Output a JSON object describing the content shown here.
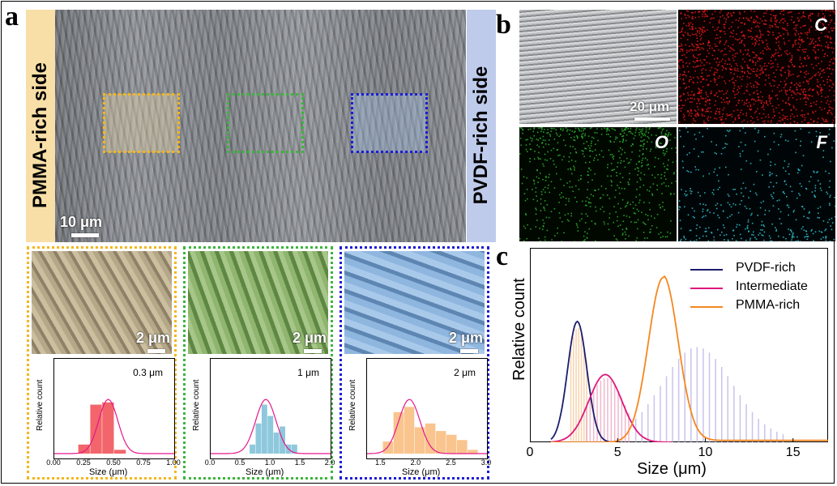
{
  "panels": {
    "a": "a",
    "b": "b",
    "c": "c"
  },
  "panel_a": {
    "left_side_label": "PMMA-rich side",
    "right_side_label": "PVDF-rich side",
    "main_scale": "10 μm",
    "colors": {
      "pmma_band": "#f8dfa7",
      "pvdf_band": "#bfcbeb",
      "orange_box": "#f5b61c",
      "green_box": "#3cb53c",
      "blue_box": "#1c1cd6"
    },
    "insets": [
      {
        "scale": "2 μm",
        "annotation": "0.3 μm",
        "ylabel": "Relative count",
        "xlabel": "Size (μm)",
        "ticks": [
          "0.00",
          "0.25",
          "0.50",
          "0.75",
          "1.00"
        ],
        "bar_color": "#f2666b",
        "curve_color": "#e5178a"
      },
      {
        "scale": "2 μm",
        "annotation": "1 μm",
        "ylabel": "Relative count",
        "xlabel": "Size (μm)",
        "ticks": [
          "0.0",
          "0.5",
          "1.0",
          "1.5",
          "2.0"
        ],
        "bar_color": "#8ec8dc",
        "curve_color": "#e5178a"
      },
      {
        "scale": "2 μm",
        "annotation": "2 μm",
        "ylabel": "Relative count",
        "xlabel": "Size (μm)",
        "ticks": [
          "1.5",
          "2.0",
          "2.5",
          "3.0"
        ],
        "bar_color": "#f9c48e",
        "curve_color": "#e5178a"
      }
    ]
  },
  "panel_b": {
    "scale": "20 μm",
    "maps": [
      {
        "label": "",
        "color": "#ffffff"
      },
      {
        "label": "C",
        "color": "#e01b1b"
      },
      {
        "label": "O",
        "color": "#2fb52f"
      },
      {
        "label": "F",
        "color": "#2ec4d0"
      }
    ]
  },
  "chart_data": [
    {
      "type": "bar",
      "title": "",
      "annotation": "0.3 μm",
      "xlabel": "Size (μm)",
      "ylabel": "Relative count",
      "xlim": [
        0.0,
        1.0
      ],
      "xticks": [
        "0.00",
        "0.25",
        "0.50",
        "0.75",
        "1.00"
      ],
      "bins": [
        0.25,
        0.35,
        0.45,
        0.55
      ],
      "values": [
        0.12,
        0.65,
        0.68,
        0.05
      ],
      "fit_center": 0.45,
      "fit_sigma": 0.08
    },
    {
      "type": "bar",
      "title": "",
      "annotation": "1 μm",
      "xlabel": "Size (μm)",
      "ylabel": "Relative count",
      "xlim": [
        0.0,
        2.0
      ],
      "xticks": [
        "0.0",
        "0.5",
        "1.0",
        "1.5",
        "2.0"
      ],
      "bins": [
        0.7,
        0.8,
        0.9,
        1.0,
        1.1,
        1.2,
        1.3,
        1.4
      ],
      "values": [
        0.12,
        0.4,
        0.65,
        0.5,
        0.28,
        0.36,
        0.12,
        0.12
      ],
      "fit_center": 0.92,
      "fit_sigma": 0.17
    },
    {
      "type": "bar",
      "title": "",
      "annotation": "2 μm",
      "xlabel": "Size (μm)",
      "ylabel": "Relative count",
      "xlim": [
        1.3,
        3.0
      ],
      "xticks": [
        "1.5",
        "2.0",
        "2.5",
        "3.0"
      ],
      "bins": [
        1.6,
        1.75,
        1.9,
        2.05,
        2.2,
        2.35,
        2.5,
        2.65,
        2.8
      ],
      "values": [
        0.16,
        0.55,
        0.62,
        0.35,
        0.4,
        0.3,
        0.25,
        0.18,
        0.05
      ],
      "fit_center": 1.9,
      "fit_sigma": 0.15
    },
    {
      "type": "line",
      "title": "",
      "xlabel": "Size (μm)",
      "ylabel": "Relative count",
      "xlim": [
        0,
        17
      ],
      "xticks": [
        "0",
        "5",
        "10",
        "15"
      ],
      "series": [
        {
          "name": "PVDF-rich",
          "color": "#1c1c6e",
          "center": 2.7,
          "sigma": 0.55,
          "peak": 0.66
        },
        {
          "name": "Intermediate",
          "color": "#e0187c",
          "center": 4.3,
          "sigma": 0.95,
          "peak": 0.37
        },
        {
          "name": "PMMA-rich",
          "color": "#f5871f",
          "center": 7.6,
          "sigma": 0.85,
          "peak": 0.9
        }
      ]
    }
  ]
}
